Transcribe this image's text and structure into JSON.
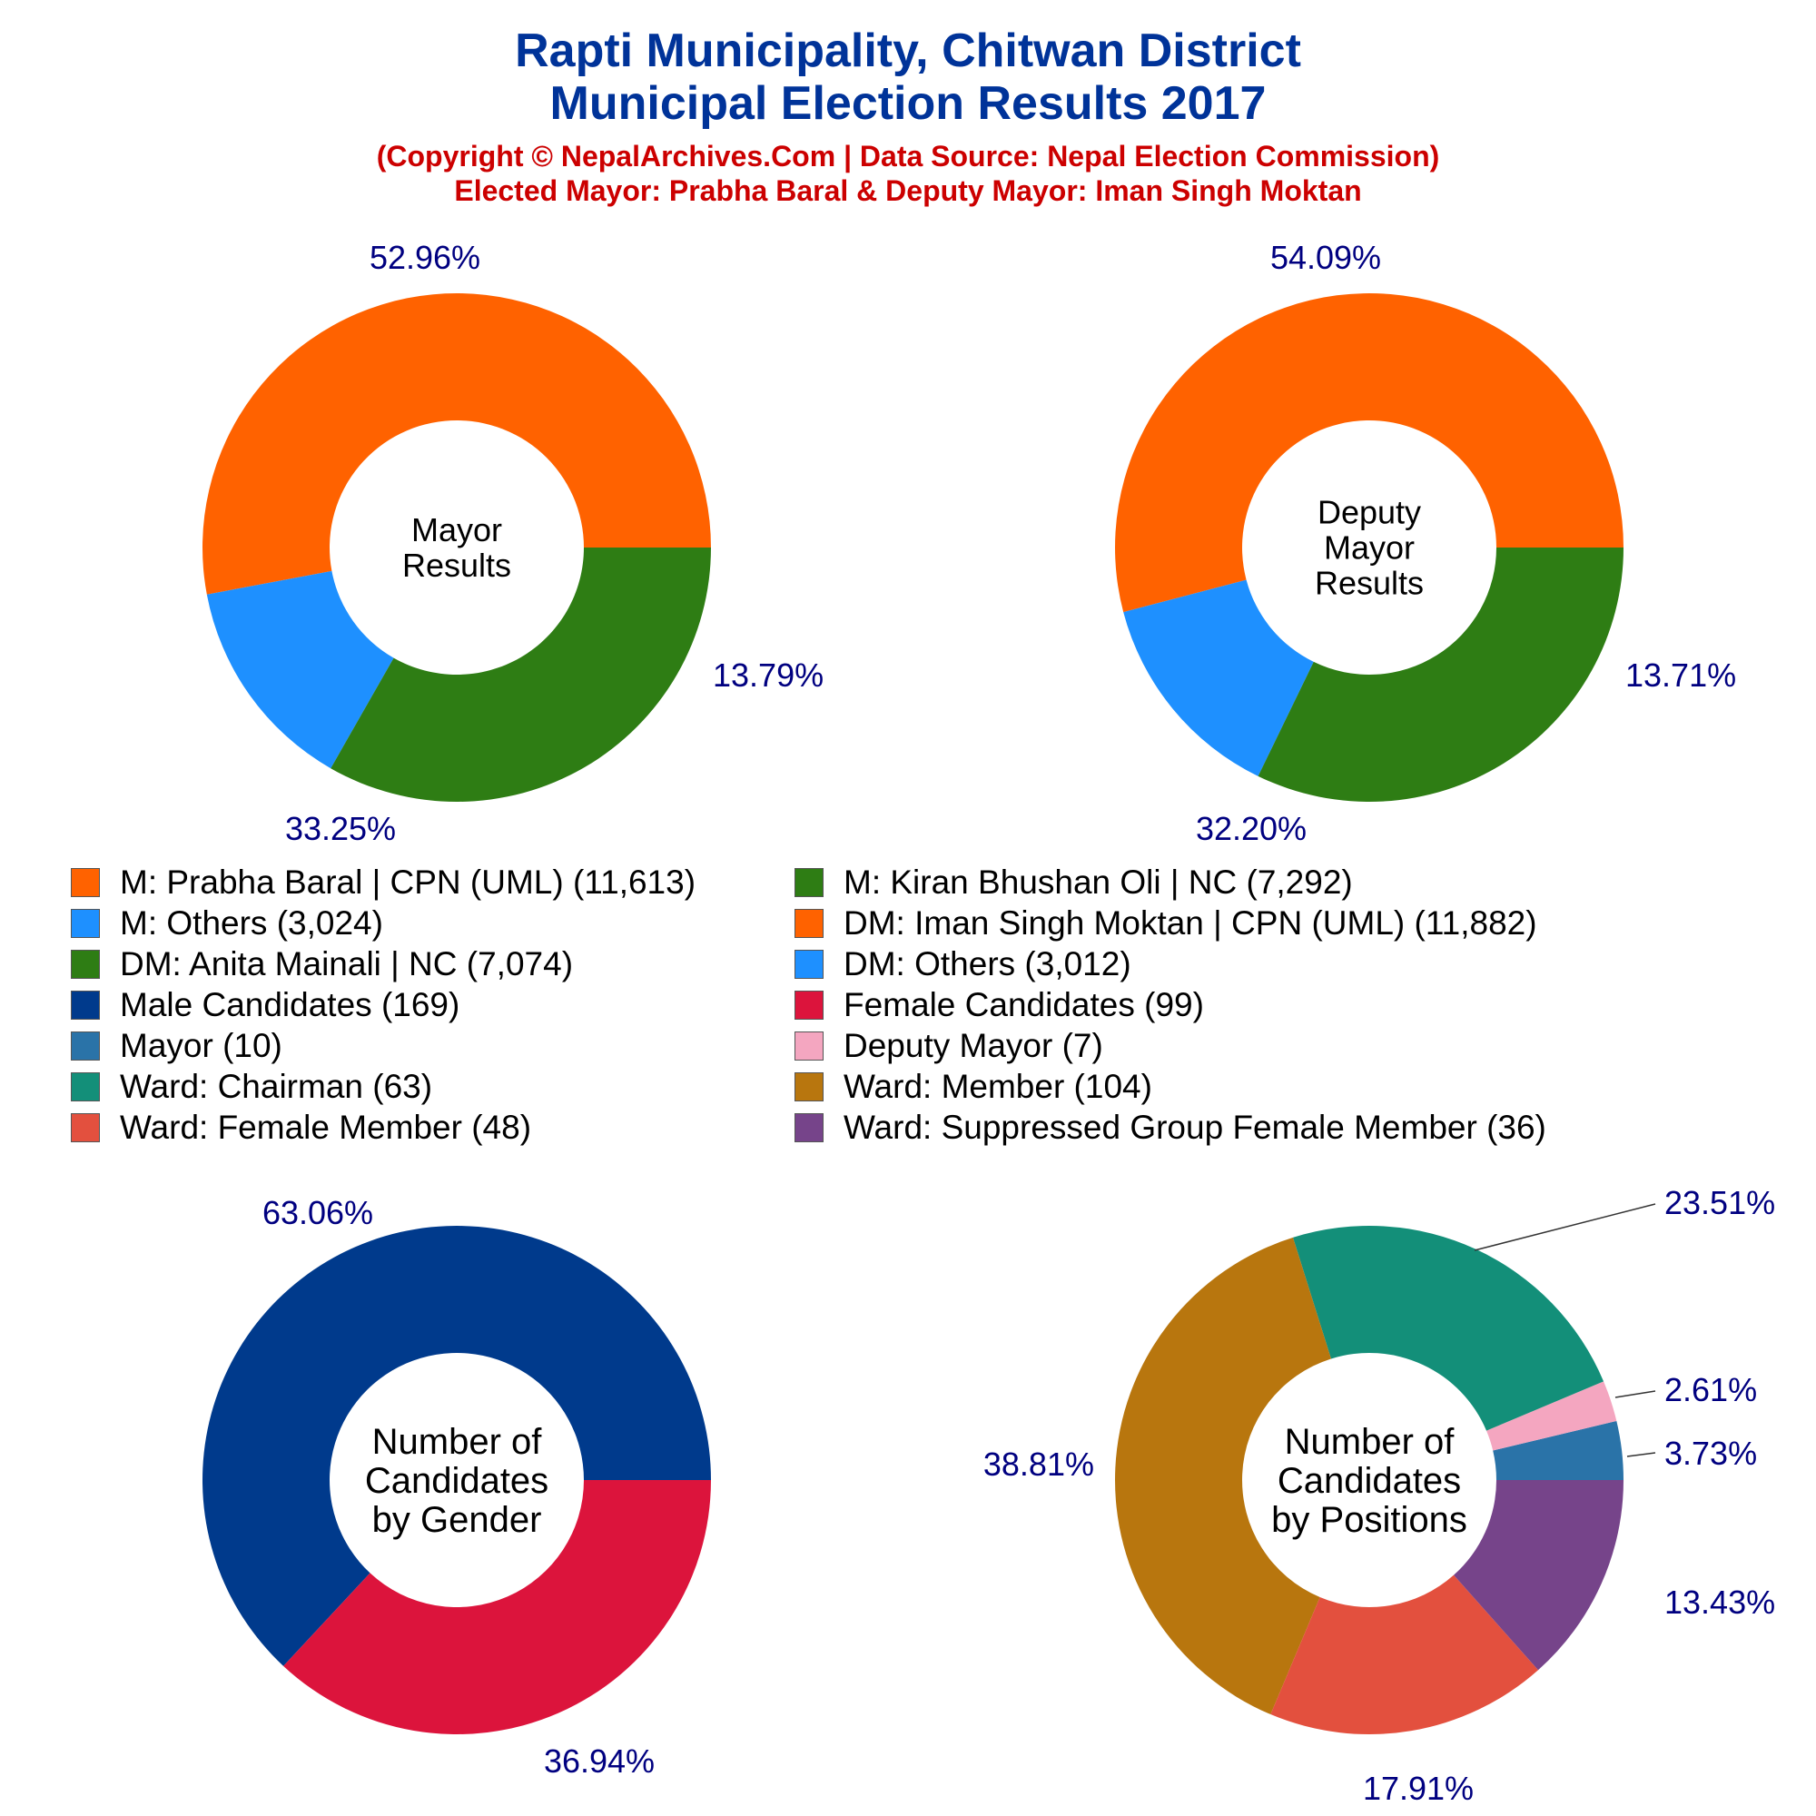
{
  "title": {
    "line1": "Rapti Municipality, Chitwan District",
    "line2": "Municipal Election Results 2017",
    "copyright": "(Copyright © NepalArchives.Com | Data Source: Nepal Election Commission)",
    "elected": "Elected Mayor: Prabha Baral & Deputy Mayor: Iman Singh Moktan"
  },
  "colors": {
    "title": "#003399",
    "subtitle": "#cc0000",
    "percent_label": "#000080",
    "uml": "#ff6200",
    "nc": "#2e7d14",
    "others": "#1e90ff",
    "male": "#003a8c",
    "female": "#dc143c",
    "mayor": "#2a73a8",
    "deputy": "#f4a6c0",
    "ward_chair": "#138f79",
    "ward_member": "#b8760e",
    "ward_female": "#e3503e",
    "ward_sg_female": "#76448a"
  },
  "legend": {
    "items": [
      {
        "label": "M: Prabha Baral | CPN (UML) (11,613)",
        "color": "#ff6200"
      },
      {
        "label": "M: Kiran Bhushan Oli | NC (7,292)",
        "color": "#2e7d14"
      },
      {
        "label": "M: Others (3,024)",
        "color": "#1e90ff"
      },
      {
        "label": "DM: Iman Singh Moktan | CPN (UML) (11,882)",
        "color": "#ff6200"
      },
      {
        "label": "DM: Anita Mainali | NC (7,074)",
        "color": "#2e7d14"
      },
      {
        "label": "DM: Others (3,012)",
        "color": "#1e90ff"
      },
      {
        "label": "Male Candidates (169)",
        "color": "#003a8c"
      },
      {
        "label": "Female Candidates (99)",
        "color": "#dc143c"
      },
      {
        "label": "Mayor (10)",
        "color": "#2a73a8"
      },
      {
        "label": "Deputy Mayor (7)",
        "color": "#f4a6c0"
      },
      {
        "label": "Ward: Chairman (63)",
        "color": "#138f79"
      },
      {
        "label": "Ward: Member (104)",
        "color": "#b8760e"
      },
      {
        "label": "Ward: Female Member (48)",
        "color": "#e3503e"
      },
      {
        "label": "Ward: Suppressed Group Female Member (36)",
        "color": "#76448a"
      }
    ]
  },
  "chart_data": [
    {
      "type": "pie",
      "title": "Mayor Results",
      "center_label": [
        "Mayor",
        "Results"
      ],
      "series": [
        {
          "name": "M: Prabha Baral | CPN (UML)",
          "value": 11613,
          "percent": "52.96%",
          "color": "#ff6200"
        },
        {
          "name": "M: Others",
          "value": 3024,
          "percent": "13.79%",
          "color": "#1e90ff"
        },
        {
          "name": "M: Kiran Bhushan Oli | NC",
          "value": 7292,
          "percent": "33.25%",
          "color": "#2e7d14"
        }
      ]
    },
    {
      "type": "pie",
      "title": "Deputy Mayor Results",
      "center_label": [
        "Deputy",
        "Mayor",
        "Results"
      ],
      "series": [
        {
          "name": "DM: Iman Singh Moktan | CPN (UML)",
          "value": 11882,
          "percent": "54.09%",
          "color": "#ff6200"
        },
        {
          "name": "DM: Others",
          "value": 3012,
          "percent": "13.71%",
          "color": "#1e90ff"
        },
        {
          "name": "DM: Anita Mainali | NC",
          "value": 7074,
          "percent": "32.20%",
          "color": "#2e7d14"
        }
      ]
    },
    {
      "type": "pie",
      "title": "Number of Candidates by Gender",
      "center_label": [
        "Number of",
        "Candidates",
        "by Gender"
      ],
      "series": [
        {
          "name": "Male Candidates",
          "value": 169,
          "percent": "63.06%",
          "color": "#003a8c"
        },
        {
          "name": "Female Candidates",
          "value": 99,
          "percent": "36.94%",
          "color": "#dc143c"
        }
      ]
    },
    {
      "type": "pie",
      "title": "Number of Candidates by Positions",
      "center_label": [
        "Number of",
        "Candidates",
        "by Positions"
      ],
      "series": [
        {
          "name": "Mayor",
          "value": 10,
          "percent": "3.73%",
          "color": "#2a73a8"
        },
        {
          "name": "Deputy Mayor",
          "value": 7,
          "percent": "2.61%",
          "color": "#f4a6c0"
        },
        {
          "name": "Ward: Chairman",
          "value": 63,
          "percent": "23.51%",
          "color": "#138f79"
        },
        {
          "name": "Ward: Member",
          "value": 104,
          "percent": "38.81%",
          "color": "#b8760e"
        },
        {
          "name": "Ward: Female Member",
          "value": 48,
          "percent": "17.91%",
          "color": "#e3503e"
        },
        {
          "name": "Ward: Suppressed Group Female Member",
          "value": 36,
          "percent": "13.43%",
          "color": "#76448a"
        }
      ]
    }
  ]
}
